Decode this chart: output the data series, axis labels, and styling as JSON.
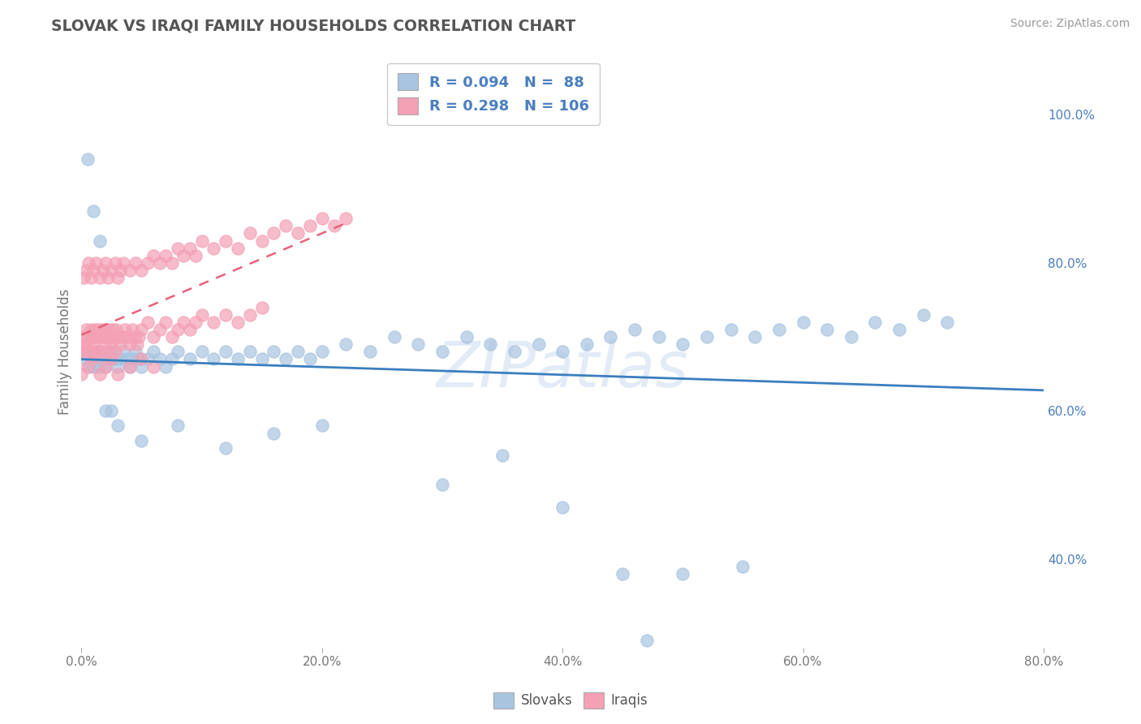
{
  "title": "SLOVAK VS IRAQI FAMILY HOUSEHOLDS CORRELATION CHART",
  "source": "Source: ZipAtlas.com",
  "ylabel": "Family Households",
  "xlim": [
    0.0,
    0.8
  ],
  "ylim": [
    0.28,
    1.08
  ],
  "xticks": [
    0.0,
    0.2,
    0.4,
    0.6,
    0.8
  ],
  "xtick_labels": [
    "0.0%",
    "20.0%",
    "40.0%",
    "60.0%",
    "80.0%"
  ],
  "ytick_labels_right": [
    "40.0%",
    "60.0%",
    "80.0%",
    "100.0%"
  ],
  "yticks_right": [
    0.4,
    0.6,
    0.8,
    1.0
  ],
  "slovak_R": 0.094,
  "slovak_N": 88,
  "iraqi_R": 0.298,
  "iraqi_N": 106,
  "slovak_color": "#a8c4e0",
  "iraqi_color": "#f4a0b5",
  "slovak_line_color": "#3a7fbf",
  "iraqi_line_color": "#e8607a",
  "legend_text_color": "#4a7fc0",
  "watermark_color": "#d0dff0",
  "background_color": "#ffffff",
  "grid_color": "#cccccc",
  "title_color": "#555555",
  "sk_x": [
    0.003,
    0.005,
    0.006,
    0.008,
    0.009,
    0.01,
    0.011,
    0.012,
    0.013,
    0.014,
    0.015,
    0.016,
    0.018,
    0.02,
    0.022,
    0.025,
    0.028,
    0.03,
    0.032,
    0.035,
    0.038,
    0.04,
    0.042,
    0.045,
    0.048,
    0.05,
    0.055,
    0.06,
    0.065,
    0.07,
    0.075,
    0.08,
    0.09,
    0.1,
    0.11,
    0.12,
    0.13,
    0.14,
    0.15,
    0.16,
    0.17,
    0.18,
    0.19,
    0.2,
    0.22,
    0.24,
    0.26,
    0.28,
    0.3,
    0.32,
    0.34,
    0.36,
    0.38,
    0.4,
    0.42,
    0.44,
    0.46,
    0.48,
    0.5,
    0.52,
    0.54,
    0.56,
    0.58,
    0.6,
    0.62,
    0.64,
    0.66,
    0.68,
    0.7,
    0.72,
    0.005,
    0.01,
    0.015,
    0.02,
    0.025,
    0.03,
    0.05,
    0.08,
    0.12,
    0.16,
    0.2,
    0.3,
    0.4,
    0.5,
    0.35,
    0.45,
    0.47,
    0.55
  ],
  "sk_y": [
    0.67,
    0.68,
    0.66,
    0.68,
    0.67,
    0.66,
    0.67,
    0.68,
    0.67,
    0.66,
    0.67,
    0.68,
    0.67,
    0.66,
    0.67,
    0.68,
    0.67,
    0.66,
    0.67,
    0.68,
    0.67,
    0.66,
    0.67,
    0.68,
    0.67,
    0.66,
    0.67,
    0.68,
    0.67,
    0.66,
    0.67,
    0.68,
    0.67,
    0.68,
    0.67,
    0.68,
    0.67,
    0.68,
    0.67,
    0.68,
    0.67,
    0.68,
    0.67,
    0.68,
    0.69,
    0.68,
    0.7,
    0.69,
    0.68,
    0.7,
    0.69,
    0.68,
    0.69,
    0.68,
    0.69,
    0.7,
    0.71,
    0.7,
    0.69,
    0.7,
    0.71,
    0.7,
    0.71,
    0.72,
    0.71,
    0.7,
    0.72,
    0.71,
    0.73,
    0.72,
    0.94,
    0.87,
    0.83,
    0.6,
    0.6,
    0.58,
    0.56,
    0.58,
    0.55,
    0.57,
    0.58,
    0.5,
    0.47,
    0.38,
    0.54,
    0.38,
    0.29,
    0.39
  ],
  "iq_x": [
    0.0,
    0.001,
    0.002,
    0.003,
    0.004,
    0.005,
    0.006,
    0.007,
    0.008,
    0.009,
    0.01,
    0.011,
    0.012,
    0.013,
    0.014,
    0.015,
    0.016,
    0.017,
    0.018,
    0.019,
    0.02,
    0.021,
    0.022,
    0.023,
    0.024,
    0.025,
    0.026,
    0.027,
    0.028,
    0.029,
    0.03,
    0.032,
    0.034,
    0.036,
    0.038,
    0.04,
    0.042,
    0.044,
    0.046,
    0.048,
    0.05,
    0.055,
    0.06,
    0.065,
    0.07,
    0.075,
    0.08,
    0.085,
    0.09,
    0.095,
    0.1,
    0.11,
    0.12,
    0.13,
    0.14,
    0.15,
    0.002,
    0.004,
    0.006,
    0.008,
    0.01,
    0.012,
    0.015,
    0.018,
    0.02,
    0.022,
    0.025,
    0.028,
    0.03,
    0.032,
    0.035,
    0.04,
    0.045,
    0.05,
    0.055,
    0.06,
    0.065,
    0.07,
    0.075,
    0.08,
    0.085,
    0.09,
    0.095,
    0.1,
    0.11,
    0.12,
    0.13,
    0.14,
    0.15,
    0.16,
    0.17,
    0.18,
    0.19,
    0.2,
    0.21,
    0.22,
    0.0,
    0.005,
    0.01,
    0.015,
    0.02,
    0.025,
    0.03,
    0.04,
    0.05,
    0.06
  ],
  "iq_y": [
    0.68,
    0.69,
    0.7,
    0.68,
    0.71,
    0.69,
    0.7,
    0.68,
    0.71,
    0.7,
    0.69,
    0.71,
    0.7,
    0.68,
    0.71,
    0.7,
    0.68,
    0.71,
    0.7,
    0.69,
    0.71,
    0.7,
    0.68,
    0.71,
    0.7,
    0.69,
    0.71,
    0.7,
    0.68,
    0.71,
    0.7,
    0.69,
    0.7,
    0.71,
    0.7,
    0.69,
    0.71,
    0.7,
    0.69,
    0.7,
    0.71,
    0.72,
    0.7,
    0.71,
    0.72,
    0.7,
    0.71,
    0.72,
    0.71,
    0.72,
    0.73,
    0.72,
    0.73,
    0.72,
    0.73,
    0.74,
    0.78,
    0.79,
    0.8,
    0.78,
    0.79,
    0.8,
    0.78,
    0.79,
    0.8,
    0.78,
    0.79,
    0.8,
    0.78,
    0.79,
    0.8,
    0.79,
    0.8,
    0.79,
    0.8,
    0.81,
    0.8,
    0.81,
    0.8,
    0.82,
    0.81,
    0.82,
    0.81,
    0.83,
    0.82,
    0.83,
    0.82,
    0.84,
    0.83,
    0.84,
    0.85,
    0.84,
    0.85,
    0.86,
    0.85,
    0.86,
    0.65,
    0.66,
    0.67,
    0.65,
    0.66,
    0.67,
    0.65,
    0.66,
    0.67,
    0.66
  ]
}
